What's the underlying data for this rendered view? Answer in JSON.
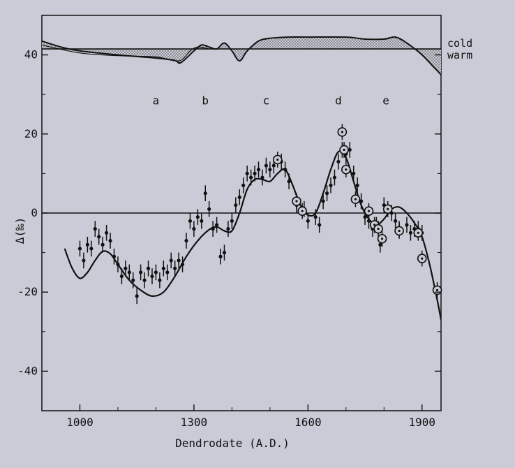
{
  "chart_data": {
    "type": "scatter",
    "xlabel": "Dendrodate (A.D.)",
    "ylabel": "Δ(‰)",
    "xlim": [
      900,
      1950
    ],
    "ylim": [
      -50,
      50
    ],
    "x_ticks": [
      1000,
      1300,
      1600,
      1900
    ],
    "y_ticks": [
      40,
      20,
      0,
      -20,
      -40
    ],
    "grid": false,
    "legend": "none",
    "top_panel": {
      "labels": {
        "cold": "cold",
        "warm": "warm"
      },
      "baseline": 41.5,
      "curve": [
        [
          900,
          43.5
        ],
        [
          950,
          42
        ],
        [
          1000,
          41
        ],
        [
          1100,
          40
        ],
        [
          1200,
          39.2
        ],
        [
          1250,
          38.6
        ],
        [
          1265,
          38
        ],
        [
          1300,
          41
        ],
        [
          1320,
          42.5
        ],
        [
          1340,
          42
        ],
        [
          1360,
          41.5
        ],
        [
          1380,
          43
        ],
        [
          1400,
          41
        ],
        [
          1420,
          38.5
        ],
        [
          1440,
          41
        ],
        [
          1470,
          43.5
        ],
        [
          1500,
          44.2
        ],
        [
          1550,
          44.5
        ],
        [
          1600,
          44.5
        ],
        [
          1700,
          44.5
        ],
        [
          1750,
          44
        ],
        [
          1800,
          44
        ],
        [
          1830,
          44.5
        ],
        [
          1860,
          43
        ],
        [
          1900,
          40
        ],
        [
          1930,
          37
        ],
        [
          1950,
          35
        ]
      ],
      "curve2": [
        [
          900,
          42.5
        ],
        [
          1000,
          40.5
        ],
        [
          1100,
          39.8
        ],
        [
          1200,
          39.5
        ],
        [
          1260,
          38.5
        ],
        [
          1290,
          41
        ],
        [
          1310,
          42
        ],
        [
          1340,
          41.5
        ]
      ]
    },
    "letters": [
      {
        "label": "a",
        "x": 1200,
        "y": 27.5
      },
      {
        "label": "b",
        "x": 1330,
        "y": 27.5
      },
      {
        "label": "c",
        "x": 1490,
        "y": 27.5
      },
      {
        "label": "d",
        "x": 1680,
        "y": 27.5
      },
      {
        "label": "e",
        "x": 1805,
        "y": 27.5
      }
    ],
    "zero_line": 0,
    "fit_curve": [
      [
        960,
        -9
      ],
      [
        980,
        -14
      ],
      [
        1000,
        -16.5
      ],
      [
        1020,
        -15
      ],
      [
        1040,
        -12
      ],
      [
        1060,
        -9.7
      ],
      [
        1080,
        -10.3
      ],
      [
        1100,
        -13
      ],
      [
        1130,
        -17
      ],
      [
        1160,
        -19.5
      ],
      [
        1190,
        -21
      ],
      [
        1220,
        -20
      ],
      [
        1250,
        -16
      ],
      [
        1280,
        -11
      ],
      [
        1310,
        -7
      ],
      [
        1340,
        -4.2
      ],
      [
        1360,
        -3.5
      ],
      [
        1380,
        -4.5
      ],
      [
        1400,
        -4.5
      ],
      [
        1420,
        0
      ],
      [
        1440,
        6
      ],
      [
        1460,
        8.5
      ],
      [
        1480,
        8.5
      ],
      [
        1500,
        8
      ],
      [
        1520,
        10
      ],
      [
        1540,
        11
      ],
      [
        1560,
        7
      ],
      [
        1580,
        2
      ],
      [
        1600,
        -0.5
      ],
      [
        1620,
        0
      ],
      [
        1640,
        5
      ],
      [
        1660,
        11
      ],
      [
        1680,
        15.5
      ],
      [
        1700,
        14
      ],
      [
        1720,
        8
      ],
      [
        1740,
        2
      ],
      [
        1760,
        -1.5
      ],
      [
        1780,
        -3
      ],
      [
        1800,
        -1.5
      ],
      [
        1820,
        1
      ],
      [
        1840,
        1.5
      ],
      [
        1860,
        0
      ],
      [
        1880,
        -2.5
      ],
      [
        1900,
        -6
      ],
      [
        1920,
        -13
      ],
      [
        1940,
        -22
      ],
      [
        1950,
        -27
      ]
    ],
    "points": [
      {
        "x": 1000,
        "y": -9,
        "e": 2
      },
      {
        "x": 1010,
        "y": -12,
        "e": 2
      },
      {
        "x": 1020,
        "y": -8,
        "e": 2
      },
      {
        "x": 1030,
        "y": -9,
        "e": 2
      },
      {
        "x": 1040,
        "y": -4,
        "e": 2
      },
      {
        "x": 1050,
        "y": -6,
        "e": 2
      },
      {
        "x": 1060,
        "y": -8,
        "e": 2
      },
      {
        "x": 1070,
        "y": -5,
        "e": 2
      },
      {
        "x": 1080,
        "y": -7,
        "e": 2
      },
      {
        "x": 1090,
        "y": -11,
        "e": 2
      },
      {
        "x": 1100,
        "y": -13,
        "e": 2
      },
      {
        "x": 1110,
        "y": -16,
        "e": 2
      },
      {
        "x": 1120,
        "y": -14,
        "e": 2
      },
      {
        "x": 1130,
        "y": -15,
        "e": 2
      },
      {
        "x": 1140,
        "y": -17,
        "e": 2
      },
      {
        "x": 1150,
        "y": -21,
        "e": 2
      },
      {
        "x": 1160,
        "y": -15,
        "e": 2
      },
      {
        "x": 1170,
        "y": -17,
        "e": 2
      },
      {
        "x": 1180,
        "y": -14,
        "e": 2
      },
      {
        "x": 1190,
        "y": -16,
        "e": 2
      },
      {
        "x": 1200,
        "y": -15,
        "e": 2
      },
      {
        "x": 1210,
        "y": -17,
        "e": 2
      },
      {
        "x": 1220,
        "y": -14,
        "e": 2
      },
      {
        "x": 1230,
        "y": -15,
        "e": 2
      },
      {
        "x": 1240,
        "y": -12,
        "e": 2
      },
      {
        "x": 1250,
        "y": -14,
        "e": 2
      },
      {
        "x": 1260,
        "y": -12,
        "e": 2
      },
      {
        "x": 1270,
        "y": -13,
        "e": 2
      },
      {
        "x": 1280,
        "y": -7,
        "e": 2
      },
      {
        "x": 1290,
        "y": -2,
        "e": 2
      },
      {
        "x": 1300,
        "y": -4,
        "e": 2
      },
      {
        "x": 1310,
        "y": -1,
        "e": 2
      },
      {
        "x": 1320,
        "y": -2,
        "e": 2
      },
      {
        "x": 1330,
        "y": 5,
        "e": 2
      },
      {
        "x": 1340,
        "y": 1,
        "e": 2
      },
      {
        "x": 1350,
        "y": -4,
        "e": 2
      },
      {
        "x": 1360,
        "y": -3,
        "e": 2
      },
      {
        "x": 1370,
        "y": -11,
        "e": 2
      },
      {
        "x": 1380,
        "y": -10,
        "e": 2
      },
      {
        "x": 1390,
        "y": -4,
        "e": 2
      },
      {
        "x": 1400,
        "y": -2,
        "e": 2
      },
      {
        "x": 1410,
        "y": 2,
        "e": 2
      },
      {
        "x": 1420,
        "y": 4,
        "e": 2
      },
      {
        "x": 1430,
        "y": 7,
        "e": 2
      },
      {
        "x": 1440,
        "y": 10,
        "e": 2
      },
      {
        "x": 1450,
        "y": 9,
        "e": 2
      },
      {
        "x": 1460,
        "y": 10,
        "e": 2
      },
      {
        "x": 1470,
        "y": 11,
        "e": 2
      },
      {
        "x": 1480,
        "y": 9,
        "e": 2
      },
      {
        "x": 1490,
        "y": 12,
        "e": 2
      },
      {
        "x": 1500,
        "y": 11,
        "e": 2
      },
      {
        "x": 1510,
        "y": 12,
        "e": 2
      },
      {
        "x": 1530,
        "y": 13,
        "e": 2
      },
      {
        "x": 1540,
        "y": 11,
        "e": 2
      },
      {
        "x": 1550,
        "y": 8,
        "e": 2
      },
      {
        "x": 1570,
        "y": 2,
        "e": 2
      },
      {
        "x": 1590,
        "y": 1,
        "e": 2
      },
      {
        "x": 1600,
        "y": -2,
        "e": 2
      },
      {
        "x": 1620,
        "y": -1,
        "e": 2
      },
      {
        "x": 1630,
        "y": -3,
        "e": 2
      },
      {
        "x": 1640,
        "y": 3,
        "e": 2
      },
      {
        "x": 1650,
        "y": 5,
        "e": 2
      },
      {
        "x": 1660,
        "y": 7,
        "e": 2
      },
      {
        "x": 1670,
        "y": 9,
        "e": 2
      },
      {
        "x": 1680,
        "y": 13,
        "e": 2
      },
      {
        "x": 1690,
        "y": 16,
        "e": 2
      },
      {
        "x": 1700,
        "y": 15,
        "e": 2
      },
      {
        "x": 1710,
        "y": 16,
        "e": 2
      },
      {
        "x": 1720,
        "y": 10,
        "e": 2
      },
      {
        "x": 1730,
        "y": 7,
        "e": 2
      },
      {
        "x": 1740,
        "y": 3,
        "e": 2
      },
      {
        "x": 1750,
        "y": -1,
        "e": 2
      },
      {
        "x": 1760,
        "y": -2,
        "e": 2
      },
      {
        "x": 1770,
        "y": -4,
        "e": 2
      },
      {
        "x": 1780,
        "y": -3,
        "e": 2
      },
      {
        "x": 1790,
        "y": -8,
        "e": 2
      },
      {
        "x": 1800,
        "y": 2,
        "e": 2
      },
      {
        "x": 1810,
        "y": 1,
        "e": 2
      },
      {
        "x": 1820,
        "y": 0,
        "e": 2
      },
      {
        "x": 1830,
        "y": -2,
        "e": 2
      },
      {
        "x": 1840,
        "y": -4,
        "e": 2
      },
      {
        "x": 1860,
        "y": -3,
        "e": 2
      },
      {
        "x": 1870,
        "y": -5,
        "e": 2
      },
      {
        "x": 1880,
        "y": -4,
        "e": 2
      },
      {
        "x": 1890,
        "y": -4,
        "e": 2
      },
      {
        "x": 1900,
        "y": -5,
        "e": 2
      }
    ],
    "circled_points": [
      {
        "x": 1520,
        "y": 13.5
      },
      {
        "x": 1570,
        "y": 3
      },
      {
        "x": 1585,
        "y": 0.5
      },
      {
        "x": 1690,
        "y": 20.5
      },
      {
        "x": 1695,
        "y": 16
      },
      {
        "x": 1700,
        "y": 11
      },
      {
        "x": 1725,
        "y": 3.5
      },
      {
        "x": 1760,
        "y": 0.5
      },
      {
        "x": 1775,
        "y": -3
      },
      {
        "x": 1785,
        "y": -4
      },
      {
        "x": 1795,
        "y": -6.5
      },
      {
        "x": 1810,
        "y": 1
      },
      {
        "x": 1840,
        "y": -4.5
      },
      {
        "x": 1890,
        "y": -5
      },
      {
        "x": 1900,
        "y": -11.5
      },
      {
        "x": 1940,
        "y": -19.5
      }
    ]
  }
}
